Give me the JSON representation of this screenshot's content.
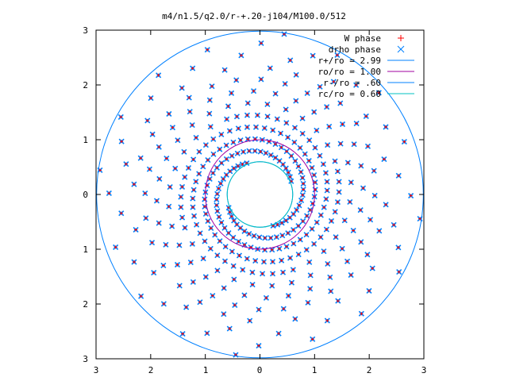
{
  "chart_data": {
    "type": "scatter",
    "title": "m4/n1.5/q2.0/r-+.20-j104/M100.0/512",
    "xlabel": "",
    "ylabel": "",
    "xlim": [
      -3,
      3
    ],
    "ylim": [
      -3,
      3
    ],
    "x_tick_labels": [
      "3",
      "2",
      "1",
      "0",
      "1",
      "2",
      "3"
    ],
    "y_tick_labels": [
      "3",
      "2",
      "1",
      "0",
      "1",
      "2",
      "3"
    ],
    "x_tick_values": [
      -3,
      -2,
      -1,
      0,
      1,
      2,
      3
    ],
    "y_tick_values": [
      3,
      2,
      1,
      0,
      -1,
      -2,
      -3
    ],
    "grid": false,
    "legend_position": "top-right",
    "series": [
      {
        "name": "W phase",
        "kind": "points",
        "marker": "plus",
        "color": "#ff0000"
      },
      {
        "name": "drho phase",
        "kind": "points",
        "marker": "cross",
        "color": "#0080ff"
      },
      {
        "name": "r+/ro = 2.99",
        "kind": "circle",
        "radius": 2.99,
        "color": "#0080ff"
      },
      {
        "name": "ro/ro = 1.00",
        "kind": "circle",
        "radius": 1.0,
        "color": "#a000a0"
      },
      {
        "name": "r-/ro = .60",
        "kind": "circle",
        "radius": 0.6,
        "color": "#0080ff"
      },
      {
        "name": "rc/ro = 0.60",
        "kind": "circle",
        "radius": 0.6,
        "color": "#00c0c0"
      }
    ],
    "spiral_arms": {
      "count": 4,
      "pitch_per_radian": 0.14,
      "r_start": 0.62,
      "r_end": 3.0
    }
  }
}
